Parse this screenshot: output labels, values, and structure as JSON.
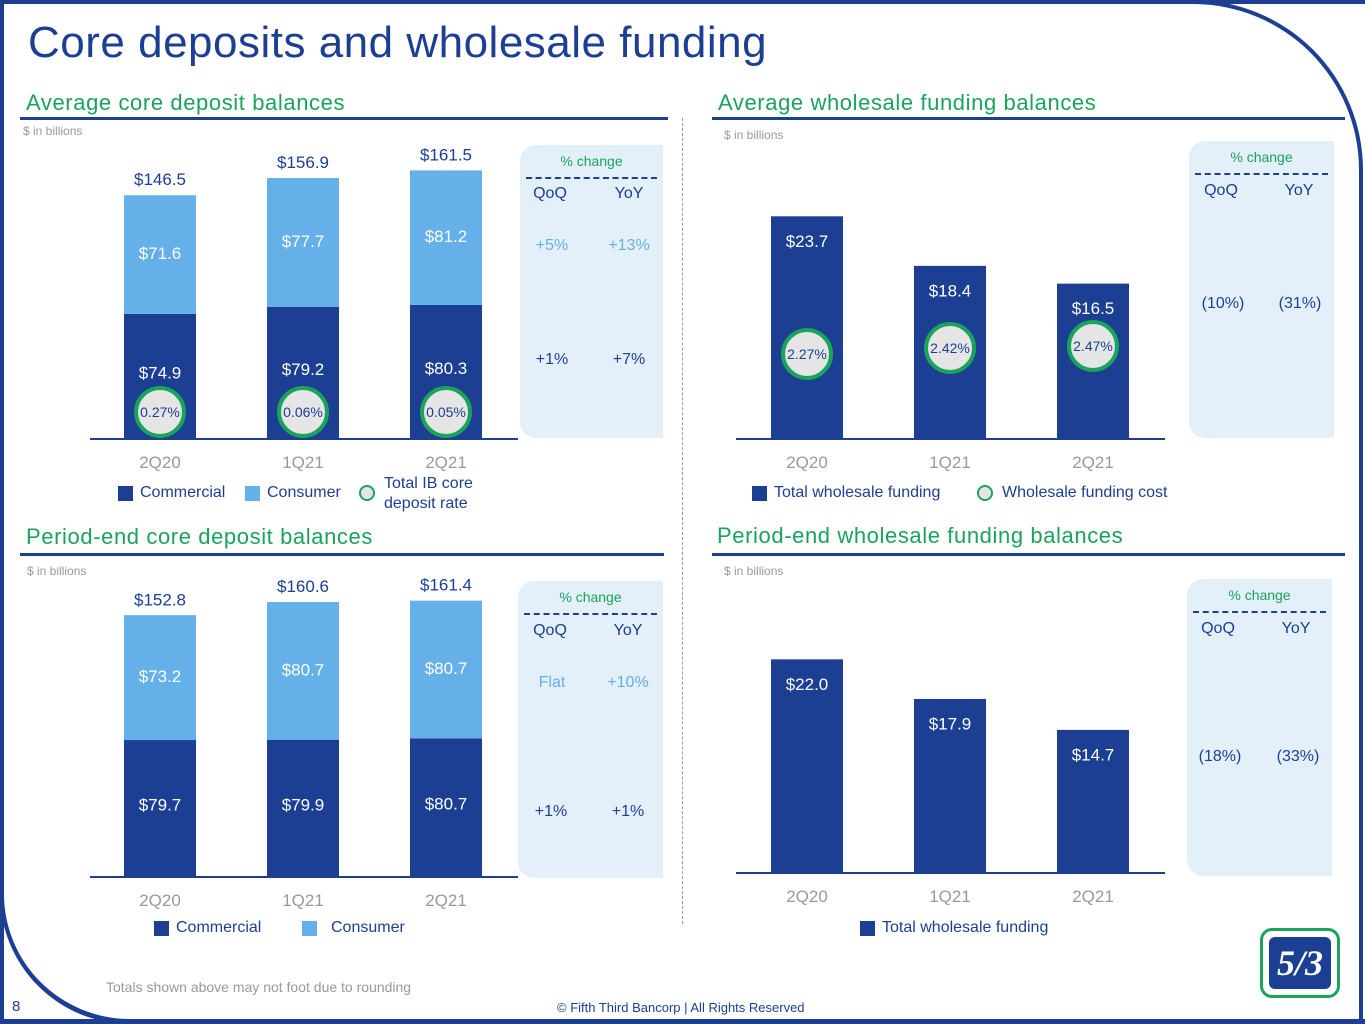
{
  "page": {
    "title": "Core deposits and wholesale funding",
    "page_number": "8",
    "footnote": "Totals shown above may not foot due to rounding",
    "copyright": "© Fifth Third Bancorp | All Rights Reserved",
    "logo_text": "5/3"
  },
  "colors": {
    "commercial": "#1c3f94",
    "consumer": "#65b0e8",
    "wholesale": "#1c3f94",
    "rate_circle": "#1aa35b",
    "title_green": "#1aa35b"
  },
  "sections": {
    "avg_core": {
      "title": "Average core deposit balances",
      "units": "$ in billions",
      "pct_change": {
        "header": "% change",
        "qoq_label": "QoQ",
        "yoy_label": "YoY",
        "consumer": {
          "qoq": "+5%",
          "yoy": "+13%"
        },
        "commercial": {
          "qoq": "+1%",
          "yoy": "+7%"
        }
      },
      "legend": {
        "commercial": "Commercial",
        "consumer": "Consumer",
        "rate_line1": "Total IB core",
        "rate_line2": "deposit rate"
      }
    },
    "avg_wholesale": {
      "title": "Average wholesale funding balances",
      "units": "$ in billions",
      "pct_change": {
        "header": "% change",
        "qoq_label": "QoQ",
        "yoy_label": "YoY",
        "total": {
          "qoq": "(10%)",
          "yoy": "(31%)"
        }
      },
      "legend": {
        "total": "Total wholesale funding",
        "cost": "Wholesale funding cost"
      }
    },
    "pe_core": {
      "title": "Period-end core deposit balances",
      "units": "$ in billions",
      "pct_change": {
        "header": "% change",
        "qoq_label": "QoQ",
        "yoy_label": "YoY",
        "consumer": {
          "qoq": "Flat",
          "yoy": "+10%"
        },
        "commercial": {
          "qoq": "+1%",
          "yoy": "+1%"
        }
      },
      "legend": {
        "commercial": "Commercial",
        "consumer": "Consumer"
      }
    },
    "pe_wholesale": {
      "title": "Period-end wholesale funding balances",
      "units": "$ in billions",
      "pct_change": {
        "header": "% change",
        "qoq_label": "QoQ",
        "yoy_label": "YoY",
        "total": {
          "qoq": "(18%)",
          "yoy": "(33%)"
        }
      },
      "legend": {
        "total": "Total wholesale funding"
      }
    }
  },
  "chart_data": [
    {
      "id": "avg_core",
      "type": "bar",
      "stacked": true,
      "title": "Average core deposit balances",
      "ylabel": "$ in billions",
      "categories": [
        "2Q20",
        "1Q21",
        "2Q21"
      ],
      "series": [
        {
          "name": "Commercial",
          "values": [
            74.9,
            79.2,
            80.3
          ],
          "labels": [
            "$74.9",
            "$79.2",
            "$80.3"
          ]
        },
        {
          "name": "Consumer",
          "values": [
            71.6,
            77.7,
            81.2
          ],
          "labels": [
            "$71.6",
            "$77.7",
            "$81.2"
          ]
        }
      ],
      "totals": [
        146.5,
        156.9,
        161.5
      ],
      "total_labels": [
        "$146.5",
        "$156.9",
        "$161.5"
      ],
      "rate": {
        "name": "Total IB core deposit rate",
        "labels": [
          "0.27%",
          "0.06%",
          "0.05%"
        ]
      },
      "ylim": [
        0,
        175
      ]
    },
    {
      "id": "avg_wholesale",
      "type": "bar",
      "title": "Average wholesale funding balances",
      "ylabel": "$ in billions",
      "categories": [
        "2Q20",
        "1Q21",
        "2Q21"
      ],
      "series": [
        {
          "name": "Total wholesale funding",
          "values": [
            23.7,
            18.4,
            16.5
          ],
          "labels": [
            "$23.7",
            "$18.4",
            "$16.5"
          ]
        }
      ],
      "rate": {
        "name": "Wholesale funding cost",
        "labels": [
          "2.27%",
          "2.42%",
          "2.47%"
        ]
      },
      "ylim": [
        0,
        31
      ]
    },
    {
      "id": "pe_core",
      "type": "bar",
      "stacked": true,
      "title": "Period-end core deposit balances",
      "ylabel": "$ in billions",
      "categories": [
        "2Q20",
        "1Q21",
        "2Q21"
      ],
      "series": [
        {
          "name": "Commercial",
          "values": [
            79.7,
            79.9,
            80.7
          ],
          "labels": [
            "$79.7",
            "$79.9",
            "$80.7"
          ]
        },
        {
          "name": "Consumer",
          "values": [
            73.2,
            80.7,
            80.7
          ],
          "labels": [
            "$73.2",
            "$80.7",
            "$80.7"
          ]
        }
      ],
      "totals": [
        152.8,
        160.6,
        161.4
      ],
      "total_labels": [
        "$152.8",
        "$160.6",
        "$161.4"
      ],
      "ylim": [
        0,
        170
      ]
    },
    {
      "id": "pe_wholesale",
      "type": "bar",
      "title": "Period-end wholesale funding balances",
      "ylabel": "$ in billions",
      "categories": [
        "2Q20",
        "1Q21",
        "2Q21"
      ],
      "series": [
        {
          "name": "Total wholesale funding",
          "values": [
            22.0,
            17.9,
            14.7
          ],
          "labels": [
            "$22.0",
            "$17.9",
            "$14.7"
          ]
        }
      ],
      "ylim": [
        0,
        30
      ]
    }
  ]
}
